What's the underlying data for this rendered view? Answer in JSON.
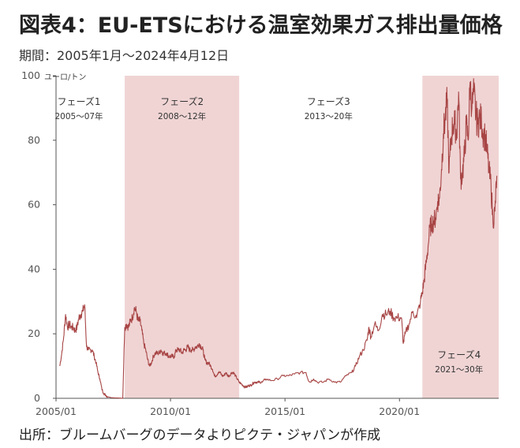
{
  "title": "図表4：EU-ETSにおける温室効果ガス排出量価格",
  "subtitle": "期間：2005年1月～2024年4月12日",
  "source": "出所：ブルームバーグのデータよりピクテ・ジャパンが作成",
  "colors": {
    "line": "#a84545",
    "phase_band": "#f0d4d4",
    "axis": "#555555"
  },
  "chart_data": {
    "type": "line",
    "title": "図表4：EU-ETSにおける温室効果ガス排出量価格",
    "subtitle": "期間：2005年1月～2024年4月12日",
    "xlabel": "",
    "ylabel": "ユーロ/トン",
    "xlim": [
      "2005-01",
      "2024-04"
    ],
    "ylim": [
      0,
      100
    ],
    "yticks": [
      0,
      20,
      40,
      60,
      80,
      100
    ],
    "xticks": [
      "2005/01",
      "2010/01",
      "2015/01",
      "2020/01"
    ],
    "grid": false,
    "phases": [
      {
        "name": "フェーズ1",
        "years": "2005～07年",
        "start": null,
        "end": null,
        "shaded": false
      },
      {
        "name": "フェーズ2",
        "years": "2008～12年",
        "start": "2008-01",
        "end": "2012-12",
        "shaded": true
      },
      {
        "name": "フェーズ3",
        "years": "2013～20年",
        "start": null,
        "end": null,
        "shaded": false
      },
      {
        "name": "フェーズ4",
        "years": "2021～30年",
        "start": "2021-01",
        "end": "2024-04",
        "shaded": true
      }
    ],
    "series": [
      {
        "name": "",
        "points": [
          [
            "2005-03",
            10
          ],
          [
            "2005-04",
            14
          ],
          [
            "2005-05",
            19
          ],
          [
            "2005-06",
            26
          ],
          [
            "2005-07",
            22
          ],
          [
            "2005-08",
            23
          ],
          [
            "2005-09",
            22
          ],
          [
            "2005-10",
            22
          ],
          [
            "2005-11",
            21
          ],
          [
            "2005-12",
            22
          ],
          [
            "2006-01",
            25
          ],
          [
            "2006-02",
            26
          ],
          [
            "2006-03",
            27
          ],
          [
            "2006-04",
            29
          ],
          [
            "2006-05",
            16
          ],
          [
            "2006-06",
            15
          ],
          [
            "2006-07",
            15
          ],
          [
            "2006-08",
            15
          ],
          [
            "2006-09",
            13
          ],
          [
            "2006-10",
            11
          ],
          [
            "2006-11",
            8
          ],
          [
            "2006-12",
            6
          ],
          [
            "2007-01",
            3
          ],
          [
            "2007-02",
            1.5
          ],
          [
            "2007-03",
            1
          ],
          [
            "2007-04",
            0.5
          ],
          [
            "2007-06",
            0.2
          ],
          [
            "2007-09",
            0.1
          ],
          [
            "2007-12",
            0.03
          ],
          [
            "2008-01",
            22
          ],
          [
            "2008-02",
            23
          ],
          [
            "2008-03",
            22
          ],
          [
            "2008-04",
            24
          ],
          [
            "2008-05",
            25
          ],
          [
            "2008-06",
            28
          ],
          [
            "2008-07",
            27
          ],
          [
            "2008-08",
            24
          ],
          [
            "2008-09",
            24
          ],
          [
            "2008-10",
            21
          ],
          [
            "2008-11",
            17
          ],
          [
            "2008-12",
            15
          ],
          [
            "2009-01",
            12
          ],
          [
            "2009-02",
            10
          ],
          [
            "2009-03",
            11
          ],
          [
            "2009-04",
            13
          ],
          [
            "2009-05",
            14
          ],
          [
            "2009-06",
            14
          ],
          [
            "2009-07",
            14
          ],
          [
            "2009-08",
            15
          ],
          [
            "2009-09",
            14
          ],
          [
            "2009-10",
            14
          ],
          [
            "2009-11",
            14
          ],
          [
            "2009-12",
            13
          ],
          [
            "2010-01",
            13
          ],
          [
            "2010-02",
            13
          ],
          [
            "2010-03",
            13
          ],
          [
            "2010-04",
            15
          ],
          [
            "2010-05",
            15
          ],
          [
            "2010-06",
            15
          ],
          [
            "2010-07",
            14
          ],
          [
            "2010-08",
            15
          ],
          [
            "2010-09",
            15
          ],
          [
            "2010-10",
            16
          ],
          [
            "2010-11",
            15
          ],
          [
            "2010-12",
            15
          ],
          [
            "2011-01",
            15
          ],
          [
            "2011-02",
            16
          ],
          [
            "2011-03",
            16
          ],
          [
            "2011-04",
            17
          ],
          [
            "2011-05",
            16
          ],
          [
            "2011-06",
            15
          ],
          [
            "2011-07",
            12
          ],
          [
            "2011-08",
            11
          ],
          [
            "2011-09",
            11
          ],
          [
            "2011-10",
            10
          ],
          [
            "2011-11",
            9
          ],
          [
            "2011-12",
            7
          ],
          [
            "2012-01",
            7
          ],
          [
            "2012-02",
            8
          ],
          [
            "2012-03",
            8
          ],
          [
            "2012-04",
            7
          ],
          [
            "2012-05",
            7
          ],
          [
            "2012-06",
            8
          ],
          [
            "2012-07",
            7
          ],
          [
            "2012-08",
            7
          ],
          [
            "2012-09",
            8
          ],
          [
            "2012-10",
            8
          ],
          [
            "2012-11",
            7
          ],
          [
            "2012-12",
            6
          ],
          [
            "2013-01",
            5
          ],
          [
            "2013-02",
            4.5
          ],
          [
            "2013-03",
            4
          ],
          [
            "2013-04",
            3.5
          ],
          [
            "2013-05",
            3.5
          ],
          [
            "2013-06",
            4
          ],
          [
            "2013-07",
            4
          ],
          [
            "2013-08",
            4.5
          ],
          [
            "2013-09",
            5
          ],
          [
            "2013-10",
            5
          ],
          [
            "2013-11",
            5
          ],
          [
            "2013-12",
            5
          ],
          [
            "2014-01",
            5
          ],
          [
            "2014-03",
            6
          ],
          [
            "2014-06",
            5.5
          ],
          [
            "2014-09",
            6
          ],
          [
            "2014-12",
            7
          ],
          [
            "2015-03",
            7
          ],
          [
            "2015-06",
            7.5
          ],
          [
            "2015-09",
            8
          ],
          [
            "2015-12",
            8
          ],
          [
            "2016-01",
            6
          ],
          [
            "2016-02",
            5
          ],
          [
            "2016-04",
            6
          ],
          [
            "2016-06",
            5
          ],
          [
            "2016-09",
            5
          ],
          [
            "2016-12",
            6
          ],
          [
            "2017-03",
            5
          ],
          [
            "2017-06",
            5
          ],
          [
            "2017-09",
            7
          ],
          [
            "2017-12",
            8
          ],
          [
            "2018-02",
            10
          ],
          [
            "2018-04",
            13
          ],
          [
            "2018-06",
            15
          ],
          [
            "2018-08",
            18
          ],
          [
            "2018-09",
            22
          ],
          [
            "2018-10",
            19
          ],
          [
            "2018-12",
            23
          ],
          [
            "2019-02",
            21
          ],
          [
            "2019-04",
            26
          ],
          [
            "2019-06",
            26
          ],
          [
            "2019-08",
            27
          ],
          [
            "2019-10",
            25
          ],
          [
            "2019-12",
            25
          ],
          [
            "2020-02",
            25
          ],
          [
            "2020-03",
            17
          ],
          [
            "2020-04",
            20
          ],
          [
            "2020-06",
            23
          ],
          [
            "2020-08",
            27
          ],
          [
            "2020-10",
            25
          ],
          [
            "2020-12",
            30
          ],
          [
            "2021-01",
            33
          ],
          [
            "2021-02",
            37
          ],
          [
            "2021-03",
            42
          ],
          [
            "2021-04",
            47
          ],
          [
            "2021-05",
            53
          ],
          [
            "2021-06",
            54
          ],
          [
            "2021-07",
            55
          ],
          [
            "2021-08",
            56
          ],
          [
            "2021-09",
            61
          ],
          [
            "2021-10",
            62
          ],
          [
            "2021-11",
            71
          ],
          [
            "2021-12",
            82
          ],
          [
            "2022-01",
            87
          ],
          [
            "2022-02",
            92
          ],
          [
            "2022-03",
            70
          ],
          [
            "2022-04",
            80
          ],
          [
            "2022-05",
            85
          ],
          [
            "2022-06",
            85
          ],
          [
            "2022-07",
            82
          ],
          [
            "2022-08",
            95
          ],
          [
            "2022-09",
            68
          ],
          [
            "2022-10",
            70
          ],
          [
            "2022-11",
            75
          ],
          [
            "2022-12",
            85
          ],
          [
            "2023-01",
            80
          ],
          [
            "2023-02",
            98
          ],
          [
            "2023-03",
            90
          ],
          [
            "2023-04",
            95
          ],
          [
            "2023-05",
            88
          ],
          [
            "2023-06",
            85
          ],
          [
            "2023-07",
            87
          ],
          [
            "2023-08",
            86
          ],
          [
            "2023-09",
            82
          ],
          [
            "2023-10",
            81
          ],
          [
            "2023-11",
            76
          ],
          [
            "2023-12",
            70
          ],
          [
            "2024-01",
            66
          ],
          [
            "2024-02",
            55
          ],
          [
            "2024-03",
            58
          ],
          [
            "2024-04",
            69
          ]
        ]
      }
    ]
  }
}
